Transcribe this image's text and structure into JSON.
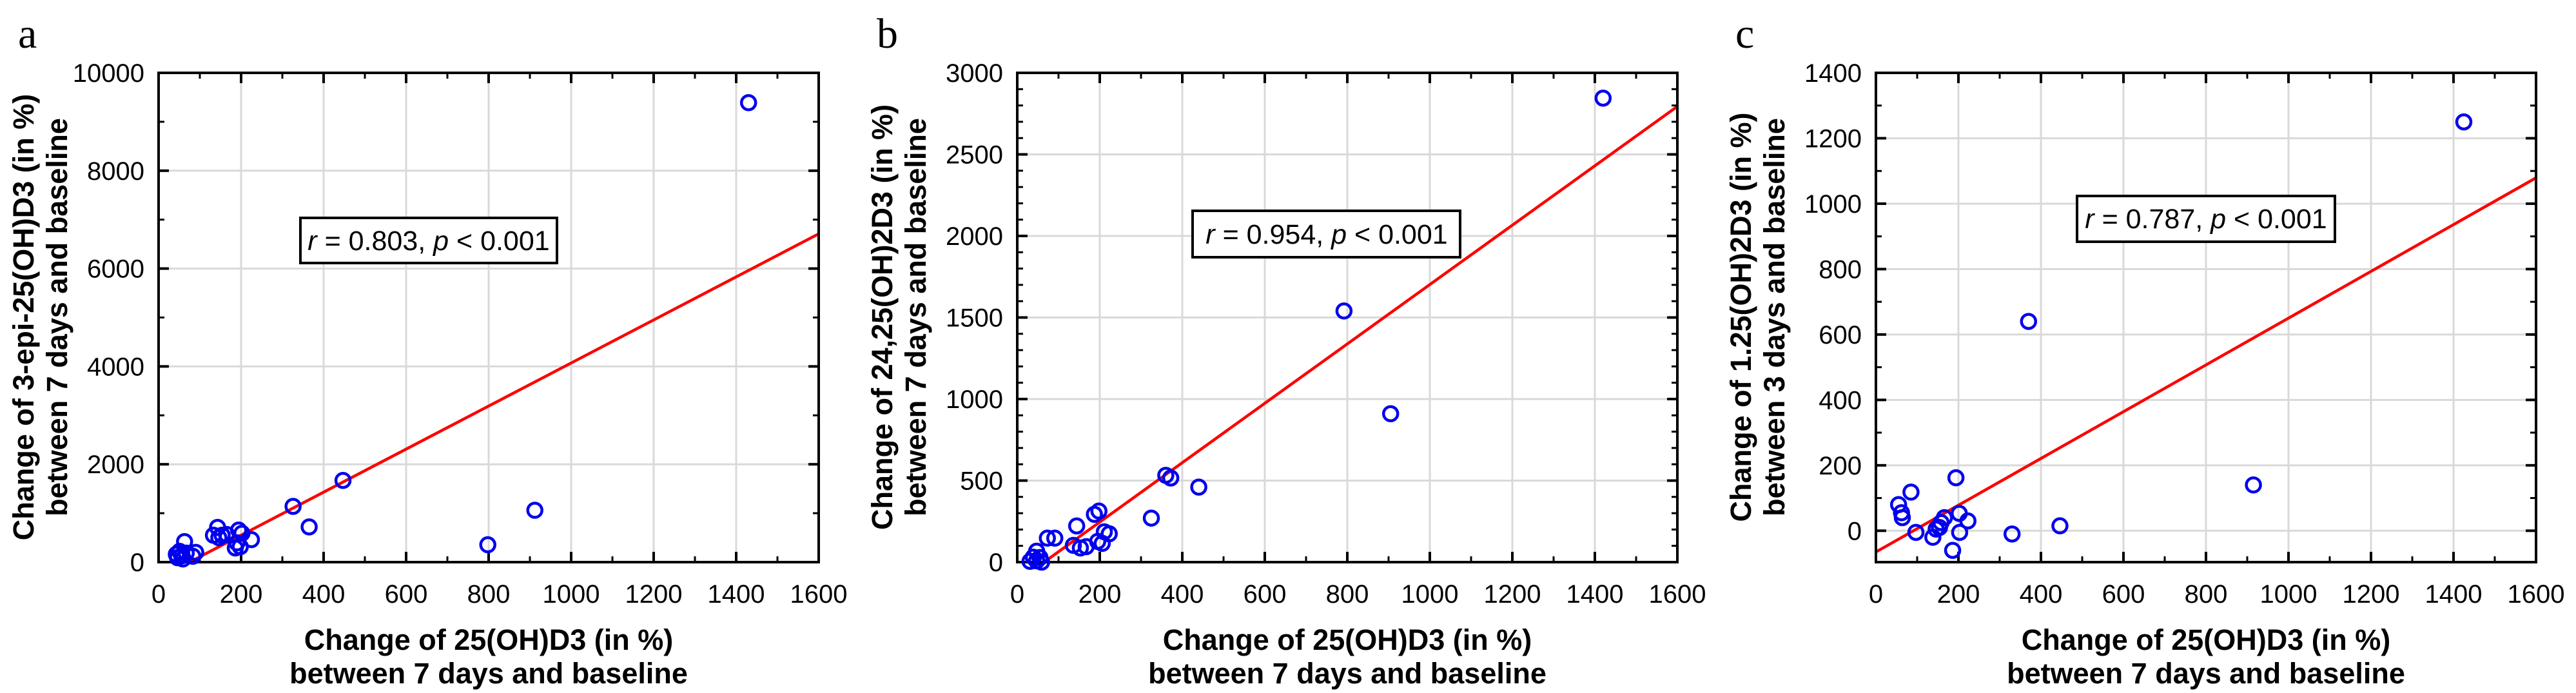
{
  "figure": {
    "description": "Three scatter plots with linear regression lines showing correlations of vitamin D metabolite changes"
  },
  "chart_data": [
    {
      "type": "scatter",
      "panel_label": "a",
      "xlabel_lines": [
        "Change of 25(OH)D3 (in %)",
        "between 7 days and baseline"
      ],
      "ylabel_lines": [
        "Change of 3-epi-25(OH)D3 (in %)",
        "between 7 days and baseline"
      ],
      "annotation": {
        "text": "r = 0.803, p < 0.001",
        "parts": [
          {
            "text": "r",
            "italic": true
          },
          {
            "text": " = 0.803, ",
            "italic": false
          },
          {
            "text": "p",
            "italic": true
          },
          {
            "text": " < 0.001",
            "italic": false
          }
        ]
      },
      "xlim": [
        0,
        1600
      ],
      "ylim": [
        0,
        10000
      ],
      "x_major_ticks": [
        0,
        200,
        400,
        600,
        800,
        1000,
        1200,
        1400,
        1600
      ],
      "x_minor_step": 100,
      "y_major_ticks": [
        0,
        2000,
        4000,
        6000,
        8000,
        10000
      ],
      "y_minor_step": 1000,
      "grid": true,
      "legend": "none",
      "regression_line": {
        "x1": 75,
        "y1": 0,
        "x2": 1600,
        "y2": 6710
      },
      "points": [
        [
          43,
          160
        ],
        [
          46,
          90
        ],
        [
          51,
          220
        ],
        [
          56,
          130
        ],
        [
          59,
          65
        ],
        [
          63,
          420
        ],
        [
          67,
          185
        ],
        [
          83,
          120
        ],
        [
          90,
          200
        ],
        [
          133,
          550
        ],
        [
          143,
          710
        ],
        [
          146,
          500
        ],
        [
          154,
          550
        ],
        [
          165,
          565
        ],
        [
          186,
          290
        ],
        [
          190,
          395
        ],
        [
          194,
          655
        ],
        [
          198,
          315
        ],
        [
          202,
          590
        ],
        [
          225,
          460
        ],
        [
          326,
          1140
        ],
        [
          365,
          720
        ],
        [
          447,
          1670
        ],
        [
          798,
          355
        ],
        [
          912,
          1060
        ],
        [
          1430,
          9390
        ]
      ],
      "colors": {
        "marker": "#0000EE",
        "regression": "#FE0000",
        "grid": "#D9D9D9",
        "axis": "#000000"
      }
    },
    {
      "type": "scatter",
      "panel_label": "b",
      "xlabel_lines": [
        "Change of 25(OH)D3 (in %)",
        "between 7 days and baseline"
      ],
      "ylabel_lines": [
        "Change of 24,25(OH)2D3 (in %)",
        "between 7 days and baseline"
      ],
      "annotation": {
        "text": "r = 0.954, p < 0.001",
        "parts": [
          {
            "text": "r",
            "italic": true
          },
          {
            "text": " = 0.954, ",
            "italic": false
          },
          {
            "text": "p",
            "italic": true
          },
          {
            "text": " < 0.001",
            "italic": false
          }
        ]
      },
      "xlim": [
        0,
        1600
      ],
      "ylim": [
        0,
        3000
      ],
      "x_major_ticks": [
        0,
        200,
        400,
        600,
        800,
        1000,
        1200,
        1400,
        1600
      ],
      "x_minor_step": 100,
      "y_major_ticks": [
        0,
        500,
        1000,
        1500,
        2000,
        2500,
        3000
      ],
      "y_minor_step": 100,
      "grid": true,
      "legend": "none",
      "regression_line": {
        "x1": 65,
        "y1": 0,
        "x2": 1600,
        "y2": 2794
      },
      "points": [
        [
          31,
          5
        ],
        [
          39,
          30
        ],
        [
          47,
          8
        ],
        [
          47,
          67
        ],
        [
          55,
          28
        ],
        [
          59,
          0
        ],
        [
          73,
          147
        ],
        [
          91,
          147
        ],
        [
          136,
          103
        ],
        [
          144,
          222
        ],
        [
          153,
          87
        ],
        [
          167,
          95
        ],
        [
          187,
          293
        ],
        [
          195,
          127
        ],
        [
          198,
          313
        ],
        [
          206,
          115
        ],
        [
          211,
          186
        ],
        [
          223,
          174
        ],
        [
          325,
          270
        ],
        [
          360,
          532
        ],
        [
          372,
          516
        ],
        [
          440,
          460
        ],
        [
          792,
          1540
        ],
        [
          905,
          910
        ],
        [
          1420,
          2845
        ]
      ],
      "colors": {
        "marker": "#0000EE",
        "regression": "#FE0000",
        "grid": "#D9D9D9",
        "axis": "#000000"
      }
    },
    {
      "type": "scatter",
      "panel_label": "c",
      "xlabel_lines": [
        "Change of 25(OH)D3 (in %)",
        "between 7 days and baseline"
      ],
      "ylabel_lines": [
        "Change of 1.25(OH)2D3 (in %)",
        "between 3 days and baseline"
      ],
      "annotation": {
        "text": "r = 0.787, p < 0.001",
        "parts": [
          {
            "text": "r",
            "italic": true
          },
          {
            "text": " = 0.787, ",
            "italic": false
          },
          {
            "text": "p",
            "italic": true
          },
          {
            "text": " < 0.001",
            "italic": false
          }
        ]
      },
      "xlim": [
        0,
        1600
      ],
      "ylim": [
        -96,
        1400
      ],
      "x_major_ticks": [
        0,
        200,
        400,
        600,
        800,
        1000,
        1200,
        1400,
        1600
      ],
      "x_minor_step": 100,
      "y_major_ticks": [
        0,
        200,
        400,
        600,
        800,
        1000,
        1200,
        1400
      ],
      "y_minor_step": 100,
      "grid": true,
      "legend": "none",
      "regression_line": {
        "x1": 0,
        "y1": -65,
        "x2": 1600,
        "y2": 1079
      },
      "points": [
        [
          55,
          80
        ],
        [
          62,
          55
        ],
        [
          64,
          40
        ],
        [
          85,
          118
        ],
        [
          97,
          -5
        ],
        [
          138,
          -20
        ],
        [
          146,
          5
        ],
        [
          154,
          10
        ],
        [
          158,
          25
        ],
        [
          166,
          40
        ],
        [
          186,
          -60
        ],
        [
          194,
          162
        ],
        [
          202,
          53
        ],
        [
          203,
          -5
        ],
        [
          223,
          30
        ],
        [
          330,
          -10
        ],
        [
          370,
          640
        ],
        [
          446,
          15
        ],
        [
          915,
          140
        ],
        [
          1425,
          1250
        ]
      ],
      "colors": {
        "marker": "#0000EE",
        "regression": "#FE0000",
        "grid": "#D9D9D9",
        "axis": "#000000"
      }
    }
  ]
}
